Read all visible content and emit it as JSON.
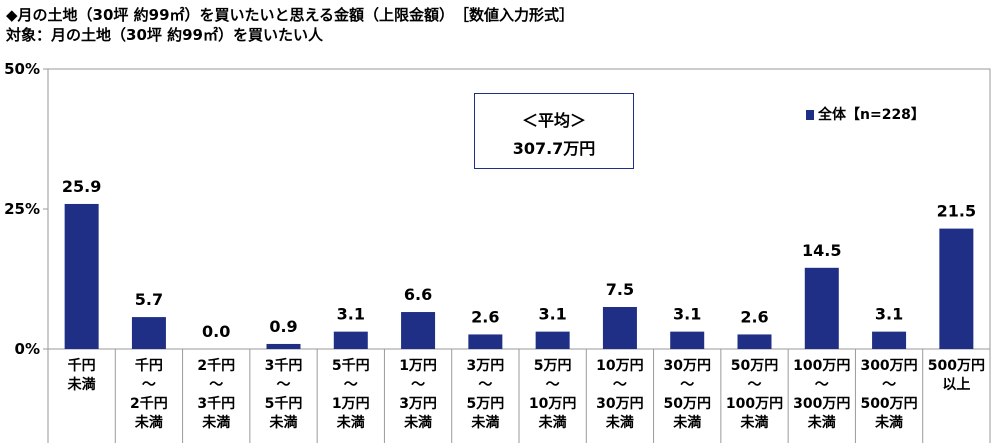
{
  "title": "◆月の土地（30坪 約99㎡）を買いたいと思える金額（上限金額）　［数値入力形式］",
  "subtitle": "対象：月の土地（30坪 約99㎡）を買いたい人",
  "average_box": {
    "line1": "＜平均＞",
    "line2": "307.7万円"
  },
  "legend": {
    "label": "全体【n=228】",
    "color": "#1f2f86"
  },
  "chart_data": {
    "type": "bar",
    "title": "",
    "xlabel": "",
    "ylabel": "",
    "ylim": [
      0,
      50
    ],
    "yticks": [
      "0%",
      "25%",
      "50%"
    ],
    "bar_color": "#1f2f86",
    "categories": [
      [
        "千円",
        "未満"
      ],
      [
        "千円",
        "～",
        "2千円",
        "未満"
      ],
      [
        "2千円",
        "～",
        "3千円",
        "未満"
      ],
      [
        "3千円",
        "～",
        "5千円",
        "未満"
      ],
      [
        "5千円",
        "～",
        "1万円",
        "未満"
      ],
      [
        "1万円",
        "～",
        "3万円",
        "未満"
      ],
      [
        "3万円",
        "～",
        "5万円",
        "未満"
      ],
      [
        "5万円",
        "～",
        "10万円",
        "未満"
      ],
      [
        "10万円",
        "～",
        "30万円",
        "未満"
      ],
      [
        "30万円",
        "～",
        "50万円",
        "未満"
      ],
      [
        "50万円",
        "～",
        "100万円",
        "未満"
      ],
      [
        "100万円",
        "～",
        "300万円",
        "未満"
      ],
      [
        "300万円",
        "～",
        "500万円",
        "未満"
      ],
      [
        "500万円",
        "以上"
      ]
    ],
    "series": [
      {
        "values": [
          25.9,
          5.7,
          0.0,
          0.9,
          3.1,
          6.6,
          2.6,
          3.1,
          7.5,
          3.1,
          2.6,
          14.5,
          3.1,
          21.5
        ],
        "labels": [
          "25.9",
          "5.7",
          "0.0",
          "0.9",
          "3.1",
          "6.6",
          "2.6",
          "3.1",
          "7.5",
          "3.1",
          "2.6",
          "14.5",
          "3.1",
          "21.5"
        ]
      }
    ]
  }
}
